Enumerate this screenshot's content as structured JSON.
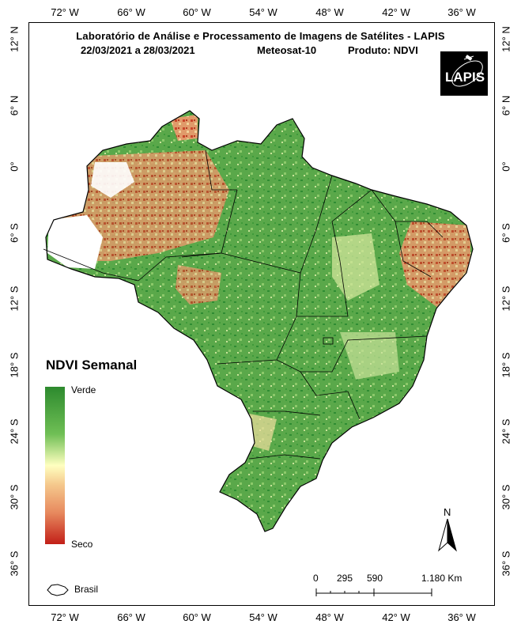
{
  "header": {
    "line1": "Laboratório de Análise e Processamento de Imagens de Satélites - LAPIS",
    "dates": "22/03/2021  a  28/03/2021",
    "satellite": "Meteosat-10",
    "product": "Produto: NDVI"
  },
  "logo": {
    "text": "LAPIS",
    "icon": "satellite-icon"
  },
  "longitude_labels": [
    "72° W",
    "66° W",
    "60° W",
    "54° W",
    "48° W",
    "42° W",
    "36° W"
  ],
  "latitude_labels": [
    "12° N",
    "6° N",
    "0°",
    "6° S",
    "12° S",
    "18° S",
    "24° S",
    "30° S",
    "36° S"
  ],
  "legend": {
    "title": "NDVI Semanal",
    "high_label": "Verde",
    "low_label": "Seco",
    "colors": [
      "#2d8a2e",
      "#6fbf55",
      "#ffffc0",
      "#f5c98d",
      "#e7895e",
      "#c21f18"
    ],
    "boundary_label": "Brasil"
  },
  "scale_bar": {
    "labels": [
      "0",
      "295",
      "590",
      "1.180 Km"
    ]
  },
  "north_arrow": {
    "label": "N",
    "icon": "north-arrow-icon"
  },
  "map": {
    "country": "Brasil",
    "palette": {
      "green": "#5aa84a",
      "dark_green": "#2f8c33",
      "dry": "#cf4b2c",
      "light": "#f2dfa0"
    }
  }
}
